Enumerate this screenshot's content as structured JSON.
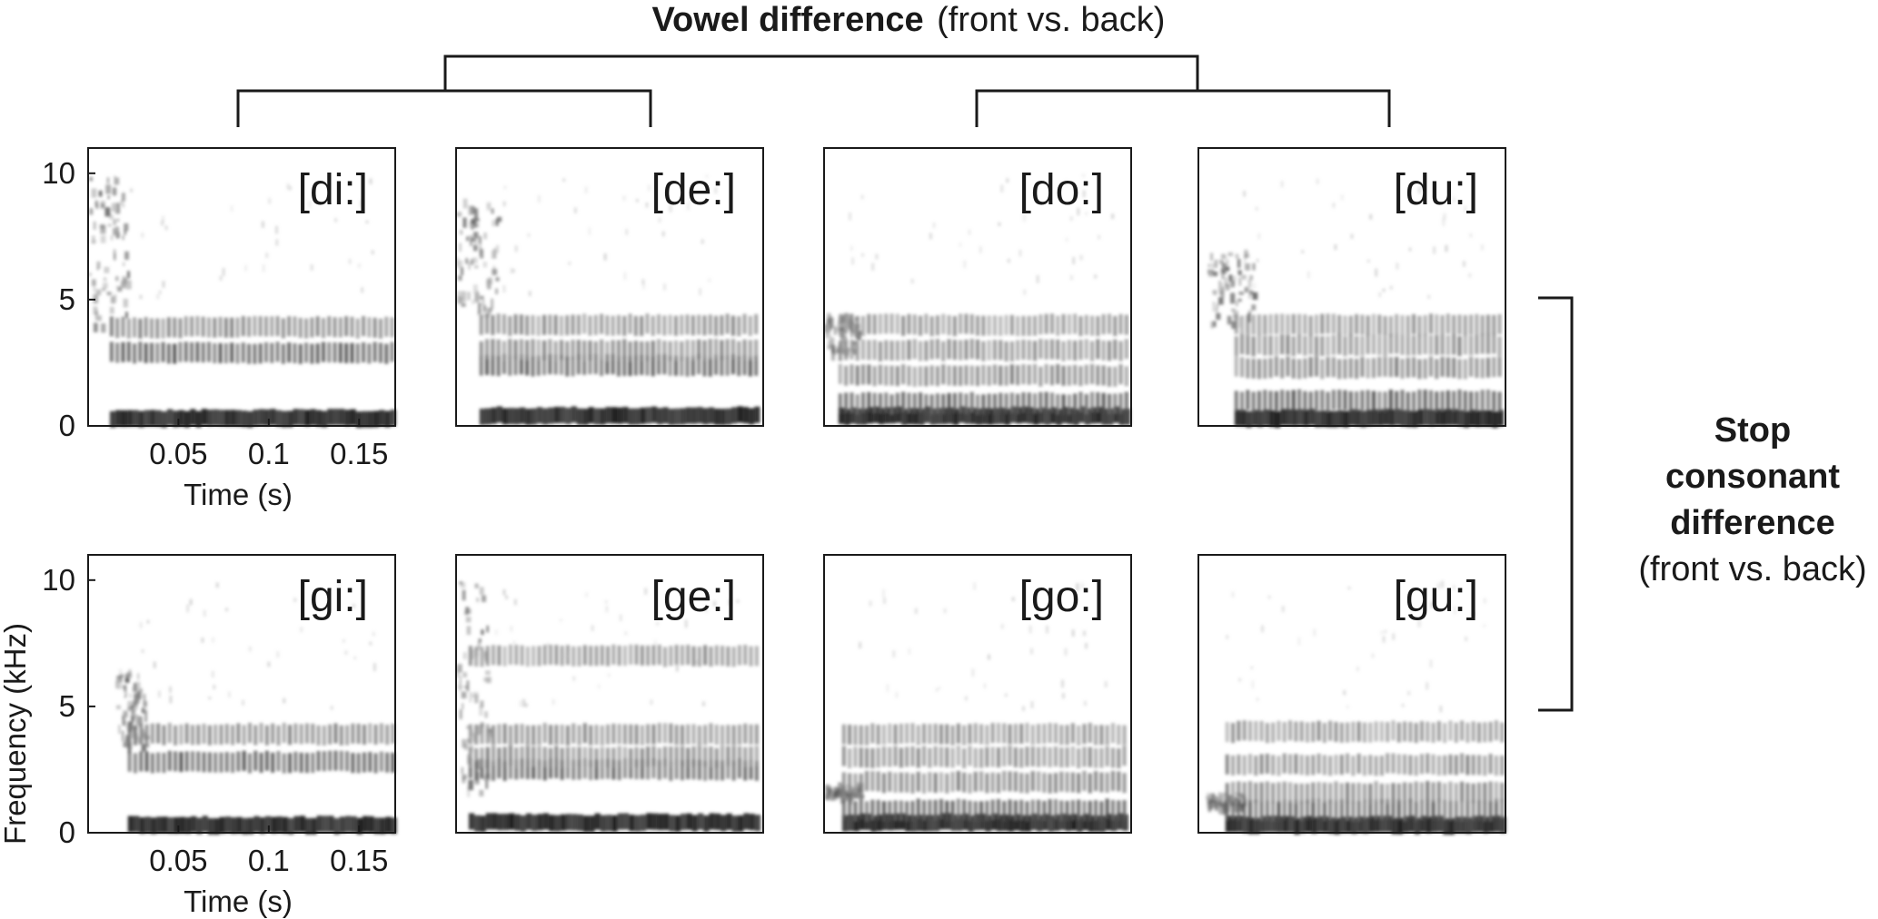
{
  "header": {
    "vowel_bold": "Vowel difference",
    "vowel_rest": "(front vs. back)"
  },
  "side": {
    "line1": "Stop",
    "line2": "consonant",
    "line3": "difference",
    "line4": "(front vs. back)"
  },
  "axes": {
    "xlabel": "Time (s)",
    "ylabel": "Frequency (kHz)",
    "y_ticks": [
      "0",
      "5",
      "10"
    ],
    "x_ticks": [
      "0.05",
      "0.1",
      "0.15"
    ]
  },
  "chart_data": {
    "type": "heatmap",
    "description_values": "spectrograms",
    "x_unit": "s",
    "y_unit": "kHz",
    "xlim": [
      0,
      0.17
    ],
    "ylim": [
      0,
      11
    ],
    "x_ticks": [
      0.05,
      0.1,
      0.15
    ],
    "y_ticks": [
      0,
      5,
      10
    ],
    "colormap": "grayscale (darker = more energy)",
    "panels": [
      {
        "label": "[di:]",
        "row": 0,
        "col": 0,
        "voicing_onset_s": 0.012,
        "burst_s": 0.0,
        "burst_band_khz": [
          4,
          10
        ],
        "formants_khz": [
          0.3,
          2.9,
          3.9
        ]
      },
      {
        "label": "[de:]",
        "row": 0,
        "col": 1,
        "voicing_onset_s": 0.013,
        "burst_s": 0.0,
        "burst_band_khz": [
          4.5,
          9
        ],
        "formants_khz": [
          0.4,
          2.4,
          3.0,
          4.0
        ]
      },
      {
        "label": "[do:]",
        "row": 0,
        "col": 2,
        "voicing_onset_s": 0.008,
        "burst_s": 0.0,
        "burst_band_khz": [
          3,
          4.5
        ],
        "formants_khz": [
          0.4,
          0.9,
          2.0,
          3.0,
          4.0
        ]
      },
      {
        "label": "[du:]",
        "row": 0,
        "col": 3,
        "voicing_onset_s": 0.02,
        "burst_s": 0.005,
        "burst_band_khz": [
          4,
          7
        ],
        "formants_khz": [
          0.3,
          1.0,
          2.3,
          3.2,
          4.0
        ]
      },
      {
        "label": "[gi:]",
        "row": 1,
        "col": 0,
        "voicing_onset_s": 0.022,
        "burst_s": 0.015,
        "burst_band_khz": [
          3.5,
          6.5
        ],
        "formants_khz": [
          0.3,
          2.8,
          3.9
        ]
      },
      {
        "label": "[ge:]",
        "row": 1,
        "col": 1,
        "voicing_onset_s": 0.007,
        "burst_s": 0.0,
        "burst_band_khz": [
          1.5,
          10
        ],
        "formants_khz": [
          0.4,
          2.5,
          3.0,
          3.9,
          7.0
        ]
      },
      {
        "label": "[go:]",
        "row": 1,
        "col": 2,
        "voicing_onset_s": 0.01,
        "burst_s": 0.0,
        "burst_band_khz": [
          1.5,
          2.0
        ],
        "formants_khz": [
          0.4,
          0.9,
          2.0,
          3.0,
          3.9
        ]
      },
      {
        "label": "[gu:]",
        "row": 1,
        "col": 3,
        "voicing_onset_s": 0.015,
        "burst_s": 0.004,
        "burst_band_khz": [
          1.0,
          1.6
        ],
        "formants_khz": [
          0.3,
          0.9,
          1.6,
          2.7,
          4.0
        ]
      }
    ]
  }
}
